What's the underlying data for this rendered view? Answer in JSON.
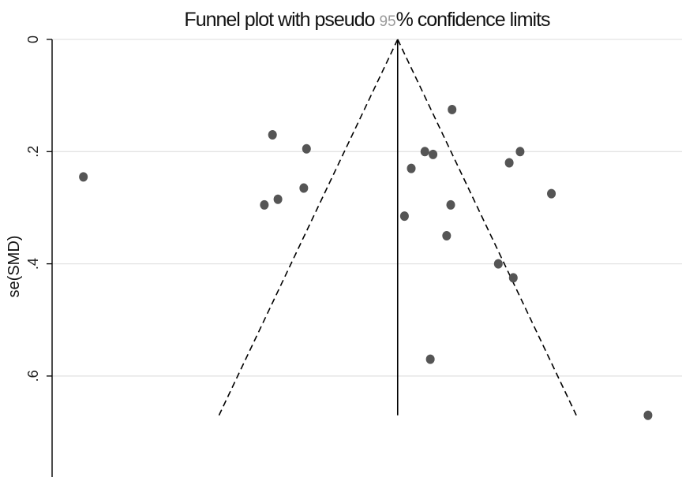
{
  "chart_data": {
    "type": "scatter",
    "title_parts": [
      "Funnel plot with pseudo ",
      "95",
      "% confidence limits"
    ],
    "xlabel": "",
    "ylabel": "se(SMD)",
    "y_reversed": true,
    "ylim": [
      0,
      0.78
    ],
    "yticks": [
      0,
      0.2,
      0.4,
      0.6
    ],
    "ytick_labels": [
      "0",
      ".2",
      ".4",
      ".6"
    ],
    "xlim": [
      -2.54,
      2.09
    ],
    "x_axis_visible": false,
    "grid": "horizontal",
    "pooled_estimate_line": 0.0,
    "pseudo_ci_se_max": 0.67,
    "pseudo_ci_z": 1.96,
    "points": [
      {
        "x": -2.31,
        "y": 0.245
      },
      {
        "x": -0.92,
        "y": 0.17
      },
      {
        "x": -0.67,
        "y": 0.195
      },
      {
        "x": -0.69,
        "y": 0.265
      },
      {
        "x": -0.88,
        "y": 0.285
      },
      {
        "x": -0.98,
        "y": 0.295
      },
      {
        "x": 0.4,
        "y": 0.125
      },
      {
        "x": 0.2,
        "y": 0.2
      },
      {
        "x": 0.26,
        "y": 0.205
      },
      {
        "x": 0.1,
        "y": 0.23
      },
      {
        "x": 0.05,
        "y": 0.315
      },
      {
        "x": 0.39,
        "y": 0.295
      },
      {
        "x": 0.36,
        "y": 0.35
      },
      {
        "x": 0.9,
        "y": 0.2
      },
      {
        "x": 0.82,
        "y": 0.22
      },
      {
        "x": 1.13,
        "y": 0.275
      },
      {
        "x": 0.74,
        "y": 0.4
      },
      {
        "x": 0.85,
        "y": 0.425
      },
      {
        "x": 0.24,
        "y": 0.57
      },
      {
        "x": 1.84,
        "y": 0.67
      }
    ]
  }
}
